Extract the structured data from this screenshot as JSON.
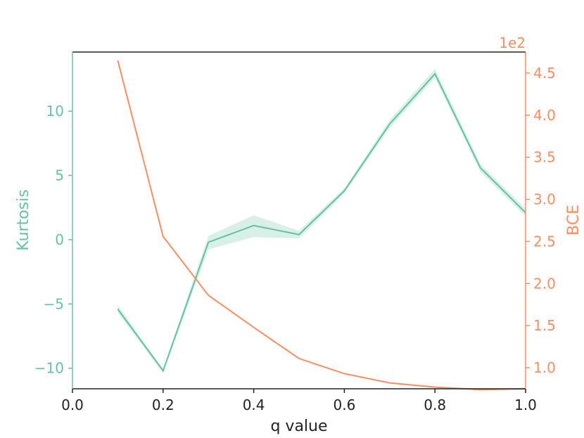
{
  "chart_data": {
    "type": "line",
    "xlabel": "q value",
    "ylabel_left": "Kurtosis",
    "ylabel_right": "BCE",
    "right_axis_multiplier": "1e2",
    "xlim": [
      0.0,
      1.0
    ],
    "ylim_left": [
      -11.6,
      14.6
    ],
    "ylim_right": [
      0.75,
      4.75
    ],
    "x_ticks": [
      "0.0",
      "0.2",
      "0.4",
      "0.6",
      "0.8",
      "1.0"
    ],
    "y_left_ticks": [
      "−10",
      "−5",
      "0",
      "5",
      "10"
    ],
    "y_right_ticks": [
      "1.0",
      "1.5",
      "2.0",
      "2.5",
      "3.0",
      "3.5",
      "4.0",
      "4.5"
    ],
    "grid": false,
    "colors": {
      "kurtosis": "#66c2a5",
      "bce": "#fc8d62",
      "band": "#66c2a5",
      "frame": "#222222"
    },
    "series": [
      {
        "axis": "left",
        "x": [
          0.1,
          0.2,
          0.3,
          0.4,
          0.5,
          0.6,
          0.7,
          0.8,
          0.9,
          1.0
        ],
        "y": [
          -5.4,
          -10.2,
          -0.2,
          1.1,
          0.4,
          3.8,
          9.0,
          12.9,
          5.6,
          2.1
        ],
        "band_low": [
          -5.7,
          -10.35,
          -0.75,
          0.2,
          0.1,
          3.6,
          8.7,
          12.6,
          5.3,
          1.8
        ],
        "band_high": [
          -5.1,
          -10.05,
          0.3,
          1.9,
          0.7,
          4.0,
          9.3,
          13.3,
          5.9,
          2.4
        ]
      },
      {
        "axis": "right",
        "x": [
          0.1,
          0.2,
          0.3,
          0.4,
          0.5,
          0.6,
          0.7,
          0.8,
          0.9,
          1.0
        ],
        "y": [
          4.65,
          2.56,
          1.86,
          1.48,
          1.11,
          0.93,
          0.82,
          0.77,
          0.74,
          0.75
        ]
      }
    ]
  }
}
